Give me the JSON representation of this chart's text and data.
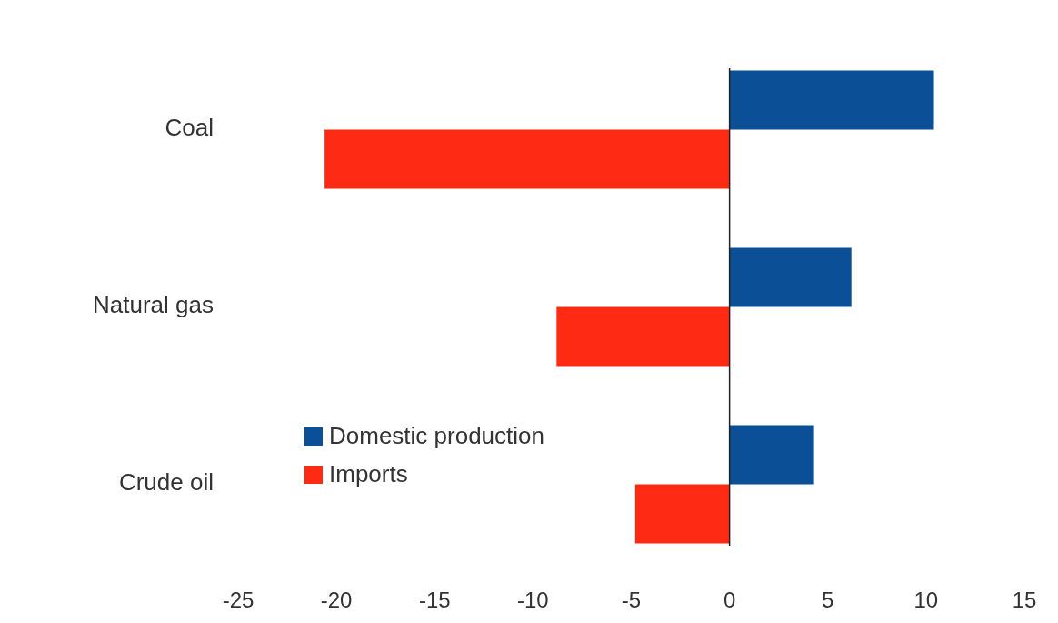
{
  "chart_data": {
    "type": "bar",
    "orientation": "horizontal",
    "categories": [
      "Coal",
      "Natural gas",
      "Crude oil"
    ],
    "series": [
      {
        "name": "Domestic production",
        "color": "#0b4f96",
        "values": [
          10.4,
          6.2,
          4.3
        ]
      },
      {
        "name": "Imports",
        "color": "#ff2a14",
        "values": [
          -20.6,
          -8.8,
          -4.8
        ]
      }
    ],
    "xlim": [
      -25,
      15
    ],
    "xticks": [
      -25,
      -20,
      -15,
      -10,
      -5,
      0,
      5,
      10,
      15
    ],
    "legend": "bottom left"
  }
}
